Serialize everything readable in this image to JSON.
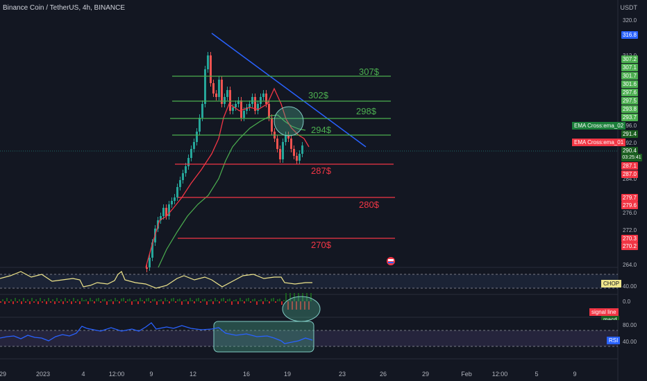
{
  "header": {
    "title": "Binance Coin / TetherUS, 4h, BINANCE",
    "currency": "USDT"
  },
  "price_axis": {
    "labels": [
      "320.0",
      "312.0",
      "296.0",
      "292.0",
      "284.0",
      "276.0",
      "272.0",
      "264.0"
    ]
  },
  "price_tags": [
    {
      "v": "316.8",
      "color": "#2962ff"
    },
    {
      "v": "307.2",
      "color": "#4caf50"
    },
    {
      "v": "307.1",
      "color": "#4caf50"
    },
    {
      "v": "301.7",
      "color": "#4caf50"
    },
    {
      "v": "301.6",
      "color": "#4caf50"
    },
    {
      "v": "297.6",
      "color": "#4caf50"
    },
    {
      "v": "297.5",
      "color": "#4caf50"
    },
    {
      "v": "293.8",
      "color": "#4caf50"
    },
    {
      "v": "293.7",
      "color": "#4caf50"
    },
    {
      "v": "291.4",
      "color": "#1b5e20"
    },
    {
      "v": "290.4",
      "color": "#1b5e20"
    },
    {
      "v": "03:25:41",
      "color": "#1b5e20"
    },
    {
      "v": "287.1",
      "color": "#f23645"
    },
    {
      "v": "287.0",
      "color": "#f23645"
    },
    {
      "v": "279.7",
      "color": "#f23645"
    },
    {
      "v": "279.6",
      "color": "#f23645"
    },
    {
      "v": "270.3",
      "color": "#f23645"
    },
    {
      "v": "270.2",
      "color": "#f23645"
    }
  ],
  "ema_labels": {
    "ema2": "EMA Cross:ema_02",
    "ema1": "EMA Cross:ema_01"
  },
  "levels": {
    "resistance": [
      "307$",
      "302$",
      "298$",
      "294$"
    ],
    "support": [
      "287$",
      "280$",
      "270$"
    ]
  },
  "indicators": {
    "chop": {
      "name": "CHOP",
      "value": "40.00"
    },
    "macd": {
      "value": "0.0",
      "signal": "signal line",
      "macd": "macd"
    },
    "rsi": {
      "name": "RSI",
      "upper": "80.00",
      "lower": "40.00"
    }
  },
  "time_axis": [
    "29",
    "2023",
    "4",
    "12:00",
    "9",
    "12",
    "16",
    "19",
    "23",
    "26",
    "29",
    "Feb",
    "12:00",
    "5",
    "9"
  ],
  "colors": {
    "bg": "#131722",
    "green": "#4caf50",
    "red": "#f23645",
    "blue": "#2962ff",
    "yellow": "#f0e68c"
  }
}
